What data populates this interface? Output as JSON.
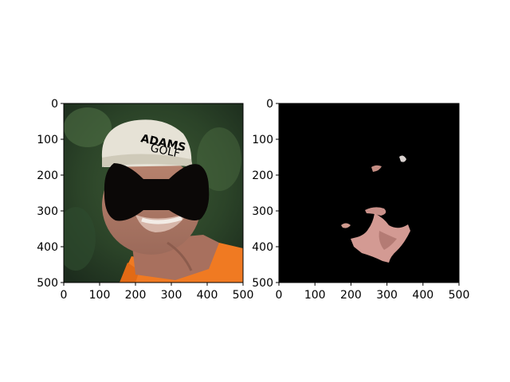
{
  "chart_data": [
    {
      "type": "image",
      "title": "",
      "xlabel": "",
      "ylabel": "",
      "xlim": [
        0,
        500
      ],
      "ylim": [
        500,
        0
      ],
      "xticks": [
        0,
        100,
        200,
        300,
        400,
        500
      ],
      "yticks": [
        0,
        100,
        200,
        300,
        400,
        500
      ],
      "grid": false,
      "content": "photo of a man in a white cap and orange shirt with a black bow-tie shaped mask over the eyes",
      "cap_text": "ADAMS GOLF",
      "colors": {
        "cap": "#e6e2d6",
        "shirt": "#f07a22",
        "mask": "#0b0807",
        "skin": "#c98f7c",
        "background": "#2f4a2c"
      }
    },
    {
      "type": "image",
      "title": "",
      "xlabel": "",
      "ylabel": "",
      "xlim": [
        0,
        500
      ],
      "ylim": [
        500,
        0
      ],
      "xticks": [
        0,
        100,
        200,
        300,
        400,
        500
      ],
      "yticks": [
        0,
        100,
        200,
        300,
        400,
        500
      ],
      "grid": false,
      "content": "black background with small isolated skin-colored segmentation regions",
      "colors": {
        "background": "#000000",
        "regions": "#d39a93"
      }
    }
  ]
}
